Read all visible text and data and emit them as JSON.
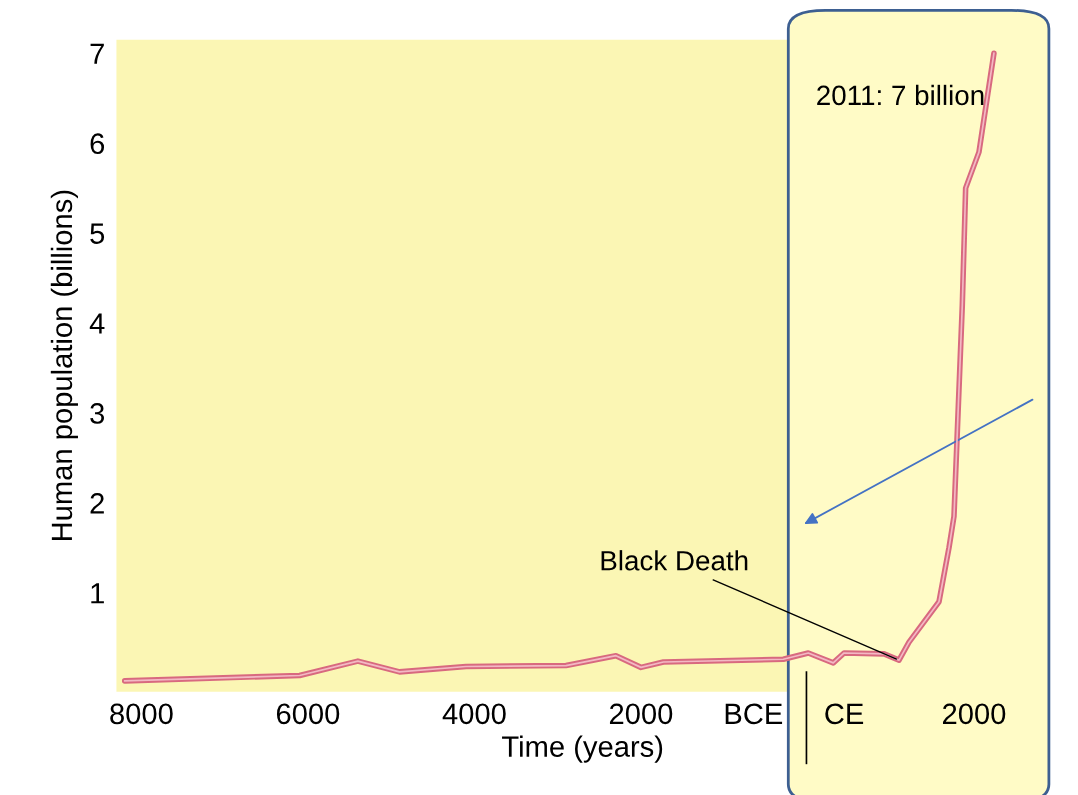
{
  "chart_data": {
    "type": "line",
    "xlabel": "Time (years)",
    "ylabel": "Human population (billions)",
    "x": [
      -8200,
      -6100,
      -5400,
      -4900,
      -4100,
      -2900,
      -2300,
      -2000,
      -1730,
      -290,
      10,
      310,
      440,
      920,
      1100,
      1220,
      1580,
      1700,
      1760,
      1860,
      1900,
      2060,
      2240
    ],
    "series": [
      {
        "color": "#d8697f",
        "values": [
          0.02,
          0.08,
          0.24,
          0.12,
          0.18,
          0.19,
          0.3,
          0.17,
          0.23,
          0.26,
          0.33,
          0.22,
          0.33,
          0.32,
          0.25,
          0.45,
          0.9,
          1.5,
          1.85,
          4.2,
          5.5,
          5.9,
          7.0
        ]
      }
    ],
    "xlim": [
      -8300,
      2900
    ],
    "ylim": [
      -0.1,
      7.15
    ],
    "xticks": [
      {
        "value": -8000,
        "label": "8000"
      },
      {
        "value": -6000,
        "label": "6000"
      },
      {
        "value": -4000,
        "label": "4000"
      },
      {
        "value": -2000,
        "label": "2000"
      },
      {
        "value": -650,
        "label": "BCE"
      },
      {
        "value": 440,
        "label": "CE"
      },
      {
        "value": 2000,
        "label": "2000"
      }
    ],
    "yticks": [
      1,
      2,
      3,
      4,
      5,
      6,
      7
    ],
    "bands": [
      {
        "axis": "x",
        "from": -230,
        "to": 2900,
        "color": "#fffbc6"
      }
    ],
    "annotations": [
      "2011: 7 billion",
      {
        "text": "Black Death",
        "x": 1100,
        "y": 0.25
      }
    ]
  }
}
